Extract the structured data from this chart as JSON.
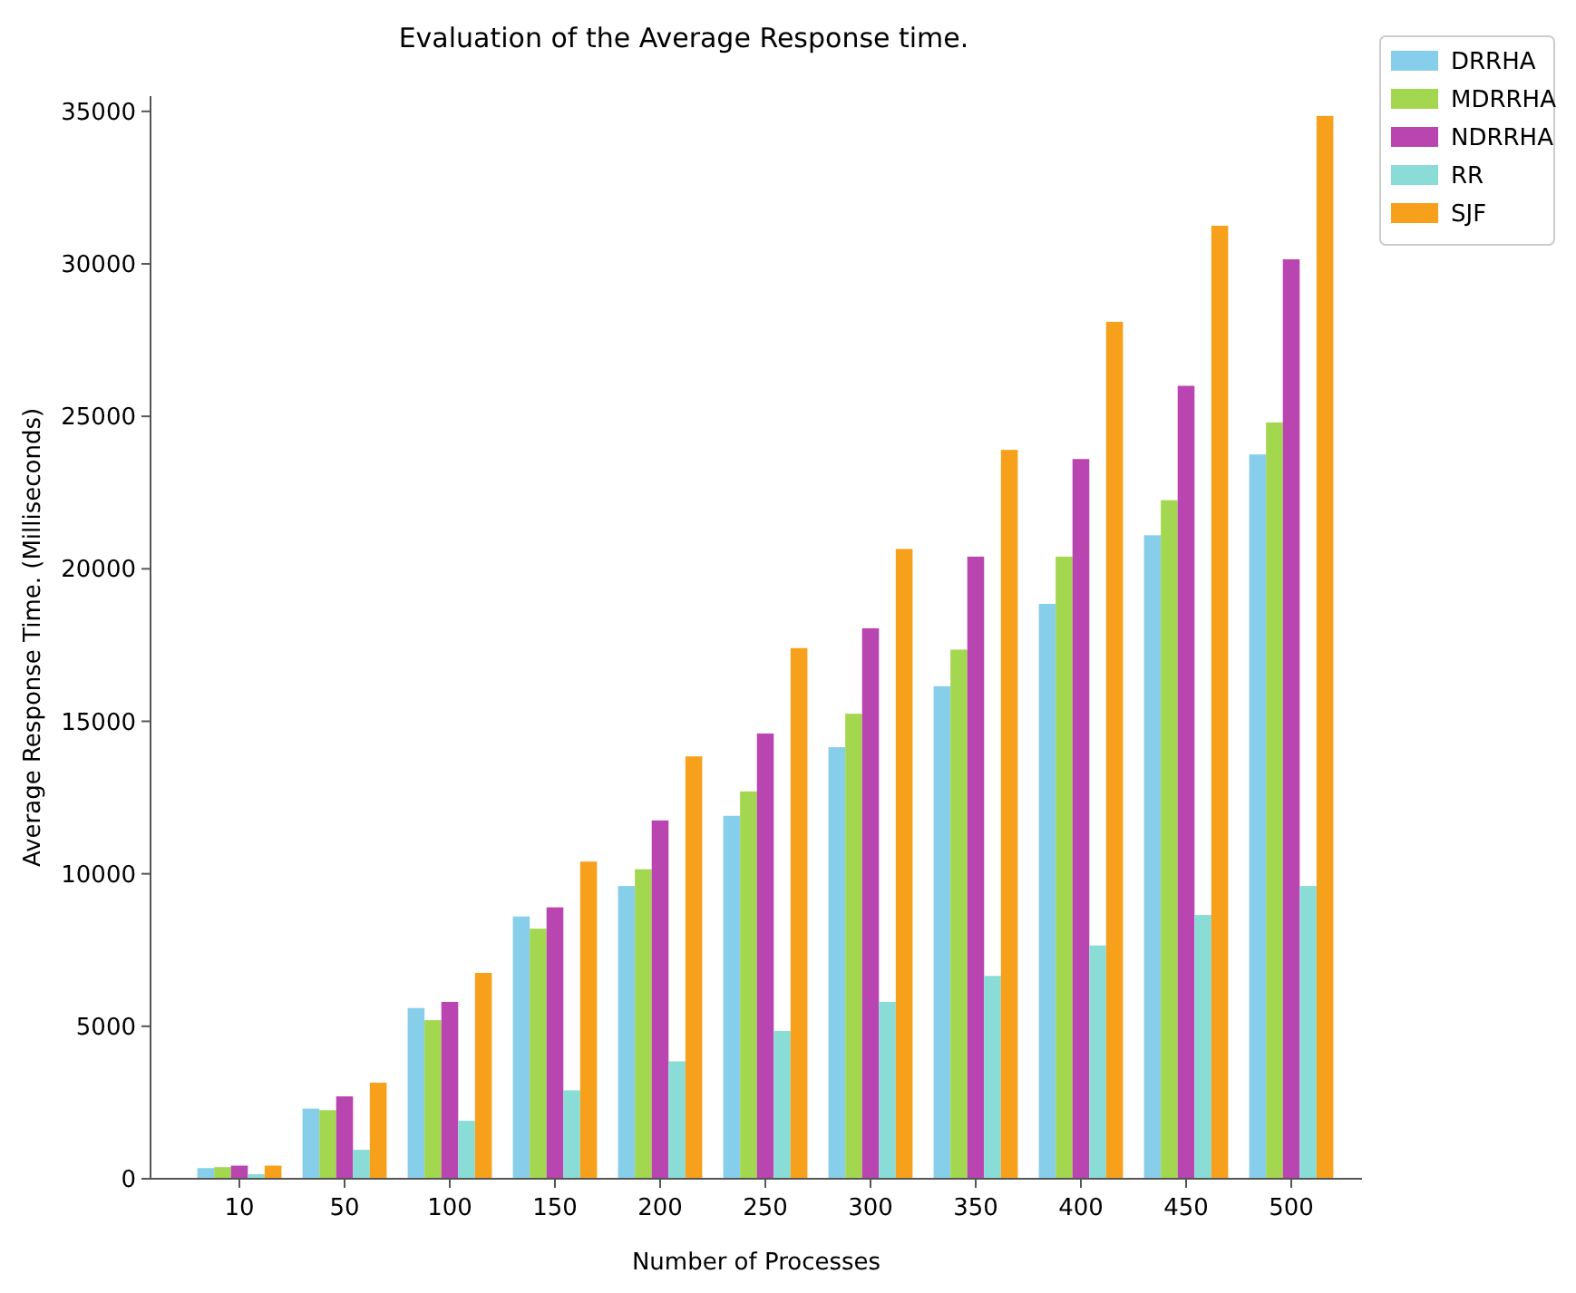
{
  "chart_data": {
    "type": "bar",
    "title": "Evaluation of the Average Response time.",
    "xlabel": "Number of Processes",
    "ylabel": "Average Response Time. (Milliseconds)",
    "categories": [
      "10",
      "50",
      "100",
      "150",
      "200",
      "250",
      "300",
      "350",
      "400",
      "450",
      "500"
    ],
    "series": [
      {
        "name": "DRRHA",
        "color": "#87ceeb",
        "values": [
          350,
          2300,
          5600,
          8600,
          9600,
          11900,
          14150,
          16150,
          18850,
          21100,
          23750
        ]
      },
      {
        "name": "MDRRHA",
        "color": "#a3d74f",
        "values": [
          380,
          2250,
          5200,
          8200,
          10150,
          12700,
          15250,
          17350,
          20400,
          22250,
          24800
        ]
      },
      {
        "name": "NDRRHA",
        "color": "#b845b0",
        "values": [
          430,
          2700,
          5800,
          8900,
          11750,
          14600,
          18050,
          20400,
          23600,
          26000,
          30150
        ]
      },
      {
        "name": "RR",
        "color": "#8adcd6",
        "values": [
          150,
          950,
          1900,
          2900,
          3850,
          4850,
          5800,
          6650,
          7650,
          8650,
          9600
        ]
      },
      {
        "name": "SJF",
        "color": "#f7a01c",
        "values": [
          430,
          3150,
          6750,
          10400,
          13850,
          17400,
          20650,
          23900,
          28100,
          31250,
          34850
        ]
      }
    ],
    "ylim": [
      0,
      35500
    ],
    "yticks": [
      0,
      5000,
      10000,
      15000,
      20000,
      25000,
      30000,
      35000
    ],
    "grid": false,
    "legend": "top right"
  }
}
